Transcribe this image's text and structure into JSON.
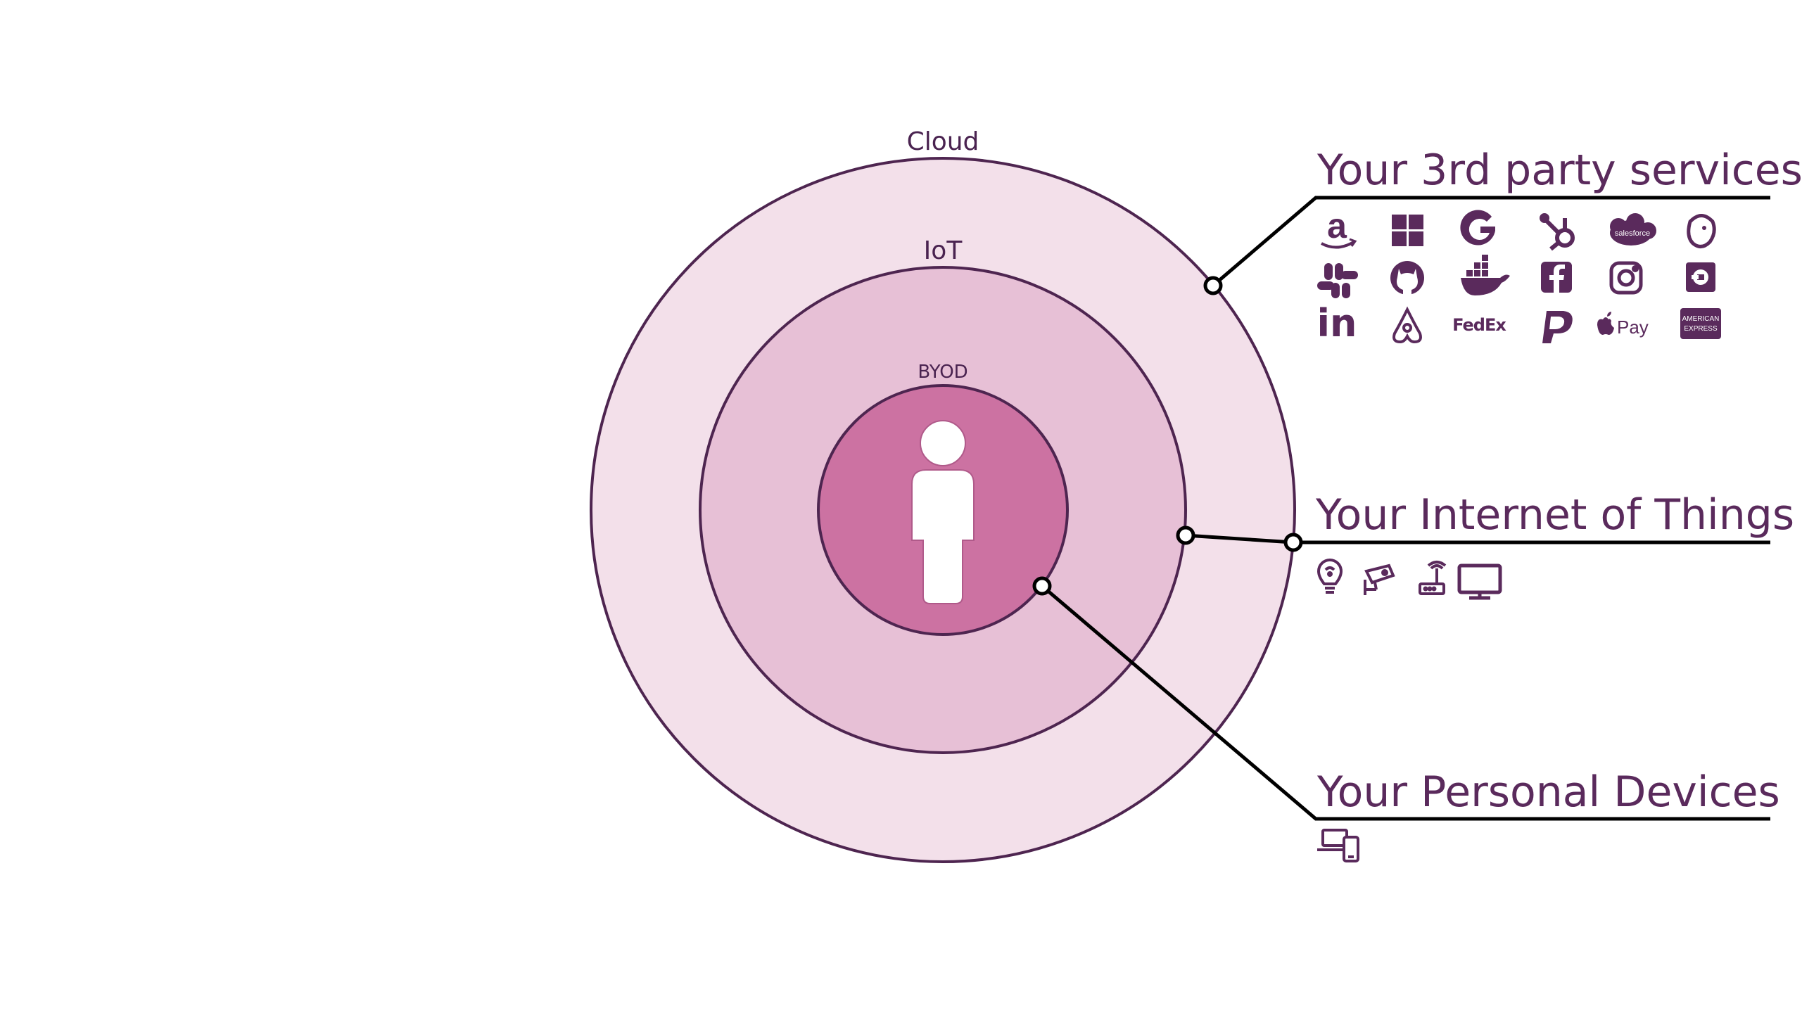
{
  "diagram": {
    "rings": [
      {
        "label": "Cloud",
        "fill": "#f3e0ea",
        "stroke": "#4e2550"
      },
      {
        "label": "IoT",
        "fill": "#e7c0d6",
        "stroke": "#4e2550"
      },
      {
        "label": "BYOD",
        "fill": "#cc72a2",
        "stroke": "#4e2550"
      }
    ],
    "person_color": "#ffffff",
    "connector_color": "#000000"
  },
  "sections": {
    "third_party": {
      "title": "Your 3rd party services",
      "icons": [
        "amazon-icon",
        "windows-icon",
        "google-icon",
        "hubspot-icon",
        "salesforce-icon",
        "mailchimp-icon",
        "slack-icon",
        "github-icon",
        "docker-icon",
        "facebook-icon",
        "instagram-icon",
        "uber-icon",
        "linkedin-icon",
        "airbnb-icon",
        "fedex-icon",
        "paypal-icon",
        "apple-pay-icon",
        "amex-icon"
      ],
      "icon_text": {
        "salesforce": "salesforce",
        "fedex": "FedEx",
        "apple_pay": "Pay",
        "amex_line1": "AMERICAN",
        "amex_line2": "EXPRESS",
        "linkedin": "in"
      }
    },
    "iot": {
      "title": "Your Internet of Things",
      "icons": [
        "lightbulb-icon",
        "security-camera-icon",
        "router-icon",
        "monitor-icon"
      ]
    },
    "personal": {
      "title": "Your Personal Devices",
      "icons": [
        "laptop-phone-icon"
      ]
    }
  },
  "colors": {
    "heading": "#5a2a5c",
    "icon": "#5a2a5c"
  }
}
